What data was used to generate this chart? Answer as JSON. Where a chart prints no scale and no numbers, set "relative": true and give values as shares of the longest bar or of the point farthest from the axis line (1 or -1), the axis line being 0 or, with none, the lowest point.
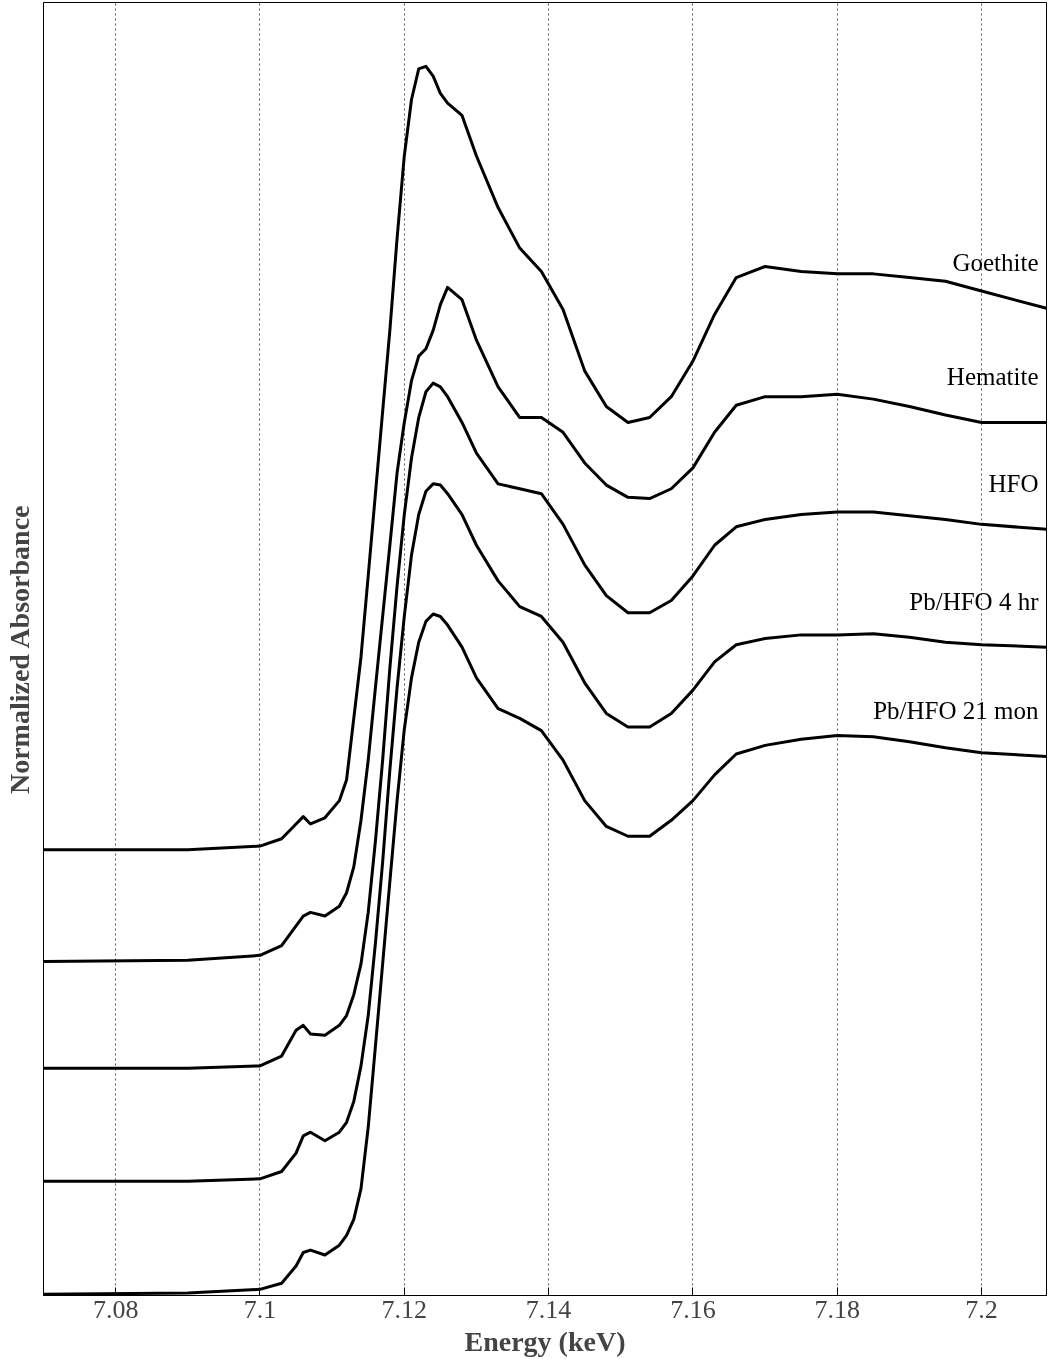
{
  "chart_data": {
    "type": "line",
    "xlabel": "Energy (keV)",
    "ylabel": "Normalized Absorbance",
    "relative": true,
    "xlim": [
      7.07,
      7.209
    ],
    "xticks": [
      7.08,
      7.1,
      7.12,
      7.14,
      7.16,
      7.18,
      7.2
    ],
    "grid": "x",
    "tick_labels": "x",
    "line_style": "solid",
    "x": [
      7.07,
      7.09,
      7.1,
      7.103,
      7.105,
      7.106,
      7.107,
      7.109,
      7.111,
      7.112,
      7.113,
      7.114,
      7.115,
      7.116,
      7.117,
      7.118,
      7.119,
      7.12,
      7.121,
      7.122,
      7.123,
      7.124,
      7.125,
      7.126,
      7.128,
      7.13,
      7.133,
      7.136,
      7.139,
      7.142,
      7.145,
      7.148,
      7.151,
      7.154,
      7.157,
      7.16,
      7.163,
      7.166,
      7.17,
      7.175,
      7.18,
      7.185,
      7.19,
      7.195,
      7.2,
      7.209
    ],
    "series": [
      {
        "name": "Goethite",
        "color": "#000000",
        "values": [
          0.362,
          0.362,
          0.365,
          0.371,
          0.383,
          0.389,
          0.383,
          0.388,
          0.402,
          0.419,
          0.469,
          0.519,
          0.585,
          0.652,
          0.719,
          0.785,
          0.86,
          0.927,
          0.973,
          0.998,
          1,
          0.992,
          0.978,
          0.97,
          0.96,
          0.927,
          0.885,
          0.852,
          0.833,
          0.802,
          0.752,
          0.723,
          0.71,
          0.714,
          0.731,
          0.76,
          0.798,
          0.828,
          0.837,
          0.833,
          0.831,
          0.831,
          0.828,
          0.825,
          0.817,
          0.803
        ]
      },
      {
        "name": "Hematite",
        "color": "#000000",
        "values": [
          0.271,
          0.272,
          0.276,
          0.284,
          0.3,
          0.308,
          0.311,
          0.308,
          0.316,
          0.327,
          0.348,
          0.386,
          0.435,
          0.494,
          0.552,
          0.61,
          0.669,
          0.71,
          0.744,
          0.764,
          0.77,
          0.785,
          0.806,
          0.82,
          0.81,
          0.777,
          0.739,
          0.714,
          0.714,
          0.702,
          0.677,
          0.659,
          0.649,
          0.648,
          0.656,
          0.673,
          0.702,
          0.724,
          0.731,
          0.731,
          0.733,
          0.729,
          0.723,
          0.716,
          0.71,
          0.71
        ]
      },
      {
        "name": "HFO",
        "color": "#000000",
        "values": [
          0.184,
          0.184,
          0.186,
          0.194,
          0.215,
          0.219,
          0.212,
          0.211,
          0.219,
          0.227,
          0.244,
          0.269,
          0.311,
          0.369,
          0.435,
          0.51,
          0.577,
          0.635,
          0.681,
          0.714,
          0.735,
          0.742,
          0.739,
          0.731,
          0.71,
          0.685,
          0.66,
          0.656,
          0.652,
          0.627,
          0.594,
          0.569,
          0.555,
          0.555,
          0.565,
          0.585,
          0.61,
          0.625,
          0.631,
          0.635,
          0.637,
          0.637,
          0.634,
          0.631,
          0.627,
          0.623
        ]
      },
      {
        "name": "Pb/HFO 4 hr",
        "color": "#000000",
        "values": [
          0.092,
          0.092,
          0.094,
          0.1,
          0.115,
          0.129,
          0.132,
          0.125,
          0.132,
          0.14,
          0.157,
          0.186,
          0.227,
          0.286,
          0.352,
          0.427,
          0.494,
          0.552,
          0.602,
          0.635,
          0.654,
          0.66,
          0.659,
          0.652,
          0.635,
          0.61,
          0.581,
          0.56,
          0.552,
          0.531,
          0.498,
          0.473,
          0.462,
          0.462,
          0.473,
          0.492,
          0.515,
          0.529,
          0.534,
          0.537,
          0.537,
          0.538,
          0.535,
          0.531,
          0.529,
          0.527
        ]
      },
      {
        "name": "Pb/HFO 21 mon",
        "color": "#000000",
        "values": [
          0,
          0.001,
          0.004,
          0.009,
          0.023,
          0.034,
          0.036,
          0.032,
          0.04,
          0.048,
          0.061,
          0.086,
          0.136,
          0.202,
          0.269,
          0.336,
          0.402,
          0.46,
          0.502,
          0.531,
          0.548,
          0.554,
          0.552,
          0.545,
          0.527,
          0.502,
          0.477,
          0.469,
          0.459,
          0.435,
          0.402,
          0.381,
          0.373,
          0.373,
          0.386,
          0.402,
          0.423,
          0.44,
          0.447,
          0.452,
          0.455,
          0.454,
          0.45,
          0.445,
          0.441,
          0.438
        ]
      }
    ]
  }
}
